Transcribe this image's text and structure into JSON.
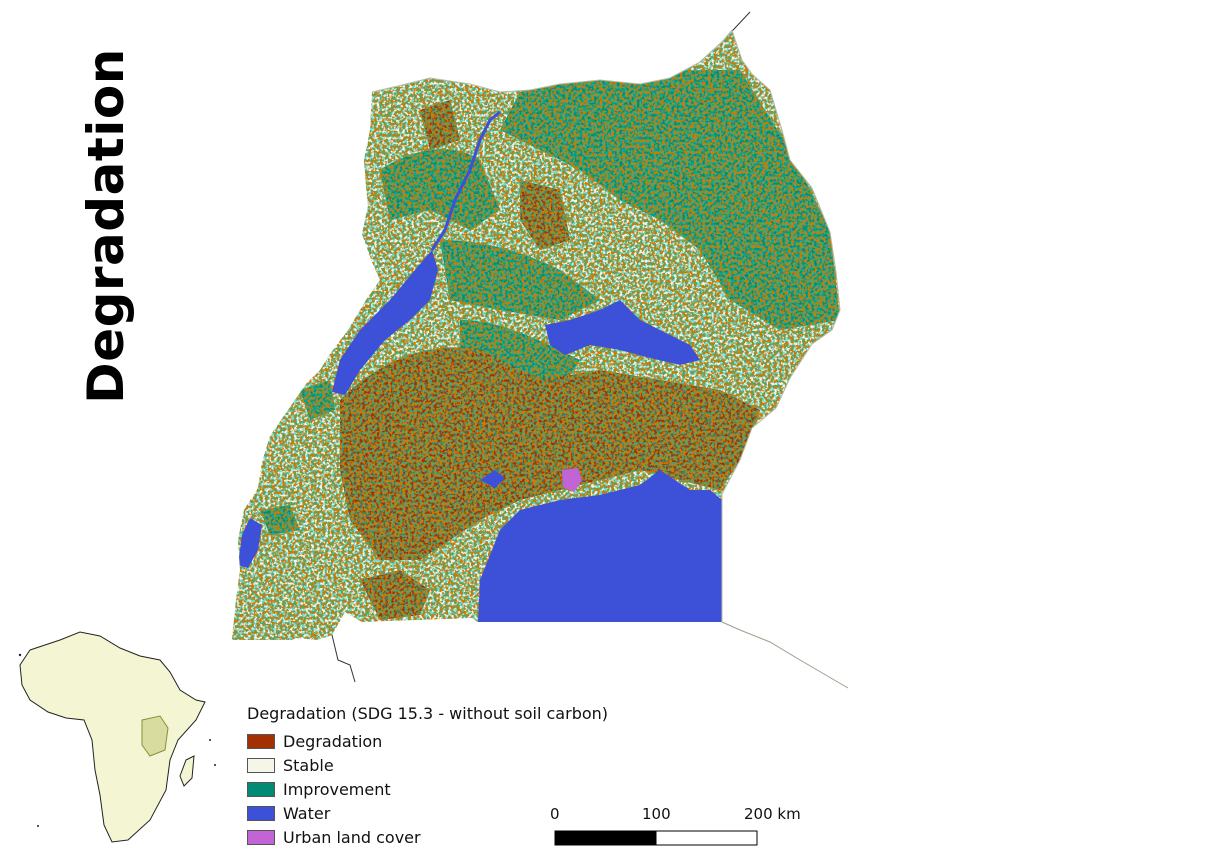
{
  "title": "Degradation",
  "legend": {
    "title": "Degradation (SDG 15.3 - without soil carbon)",
    "items": [
      {
        "label": "Degradation",
        "color": "#a33000"
      },
      {
        "label": "Stable",
        "color": "#f5f5e8"
      },
      {
        "label": "Improvement",
        "color": "#018a74"
      },
      {
        "label": "Water",
        "color": "#3c50d8"
      },
      {
        "label": "Urban land cover",
        "color": "#c264d6"
      }
    ]
  },
  "scale_bar": {
    "labels": [
      "0",
      "100",
      "200 km"
    ]
  },
  "colors": {
    "degradation": "#a33000",
    "stable": "#f5f5e8",
    "improvement": "#018a74",
    "water": "#3c50d8",
    "urban": "#c264d6",
    "inset_land": "#f4f5d2"
  }
}
